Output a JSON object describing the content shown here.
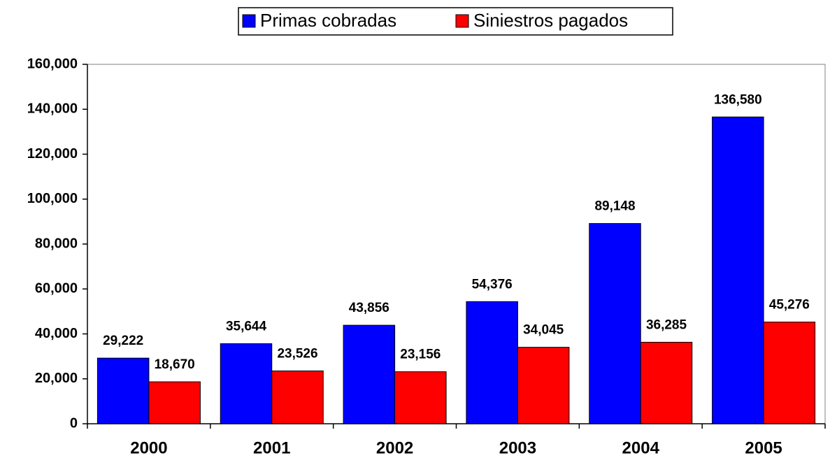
{
  "chart_data": {
    "type": "bar",
    "categories": [
      "2000",
      "2001",
      "2002",
      "2003",
      "2004",
      "2005"
    ],
    "series": [
      {
        "name": "Primas cobradas",
        "color": "#0000ff",
        "values": [
          29222,
          35644,
          43856,
          54376,
          89148,
          136580
        ],
        "value_labels": [
          "29,222",
          "35,644",
          "43,856",
          "54,376",
          "89,148",
          "136,580"
        ]
      },
      {
        "name": "Siniestros pagados",
        "color": "#ff0000",
        "values": [
          18670,
          23526,
          23156,
          34045,
          36285,
          45276
        ],
        "value_labels": [
          "18,670",
          "23,526",
          "23,156",
          "34,045",
          "36,285",
          "45,276"
        ]
      }
    ],
    "ylim": [
      0,
      160000
    ],
    "yticks": [
      0,
      {
        "value": 20000,
        "label": "20,000"
      },
      {
        "value": 40000,
        "label": "40,000"
      },
      {
        "value": 60000,
        "label": "60,000"
      },
      {
        "value": 80000,
        "label": "80,000"
      },
      {
        "value": 100000,
        "label": "100,000"
      },
      {
        "value": 120000,
        "label": "120,000"
      },
      {
        "value": 140000,
        "label": "140,000"
      },
      {
        "value": 160000,
        "label": "160,000"
      }
    ],
    "legend": "top",
    "grid": false
  }
}
